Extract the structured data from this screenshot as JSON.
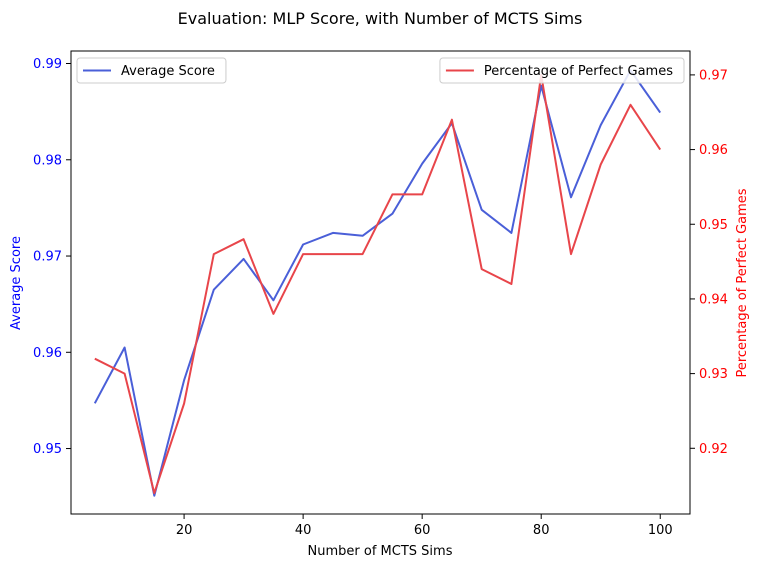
{
  "chart_data": {
    "type": "line",
    "title": "Evaluation: MLP Score, with Number of MCTS Sims",
    "xlabel": "Number of MCTS Sims",
    "x": [
      5,
      10,
      15,
      20,
      25,
      30,
      35,
      40,
      45,
      50,
      55,
      60,
      65,
      70,
      75,
      80,
      85,
      90,
      95,
      100
    ],
    "xlim": [
      1,
      105
    ],
    "xticks": [
      20,
      40,
      60,
      80,
      100
    ],
    "y_left": {
      "label": "Average Score",
      "color": "#0000ff",
      "lim": [
        0.9432,
        0.9913
      ],
      "ticks": [
        0.95,
        0.96,
        0.97,
        0.98,
        0.99
      ],
      "tick_labels": [
        "0.95",
        "0.96",
        "0.97",
        "0.98",
        "0.99"
      ]
    },
    "y_right": {
      "label": "Percentage of Perfect Games",
      "color": "#ff0000",
      "lim": [
        0.9112,
        0.9732
      ],
      "ticks": [
        0.92,
        0.93,
        0.94,
        0.95,
        0.96,
        0.97
      ],
      "tick_labels": [
        "0.92",
        "0.93",
        "0.94",
        "0.95",
        "0.96",
        "0.97"
      ]
    },
    "series": [
      {
        "name": "Average Score",
        "axis": "left",
        "color": "#4a5fd8",
        "values": [
          0.9547,
          0.9605,
          0.9451,
          0.9571,
          0.9665,
          0.9697,
          0.9654,
          0.9712,
          0.9724,
          0.9721,
          0.9744,
          0.9796,
          0.9838,
          0.9748,
          0.9724,
          0.9877,
          0.9761,
          0.9836,
          0.9893,
          0.9849
        ]
      },
      {
        "name": "Percentage of Perfect Games",
        "axis": "right",
        "color": "#e8454a",
        "values": [
          0.932,
          0.93,
          0.914,
          0.926,
          0.946,
          0.948,
          0.938,
          0.946,
          0.946,
          0.946,
          0.954,
          0.954,
          0.964,
          0.944,
          0.942,
          0.97,
          0.946,
          0.958,
          0.966,
          0.96
        ]
      }
    ],
    "legends": [
      {
        "position": "upper-left",
        "entries": [
          "Average Score"
        ]
      },
      {
        "position": "upper-right",
        "entries": [
          "Percentage of Perfect Games"
        ]
      }
    ],
    "grid": false
  }
}
